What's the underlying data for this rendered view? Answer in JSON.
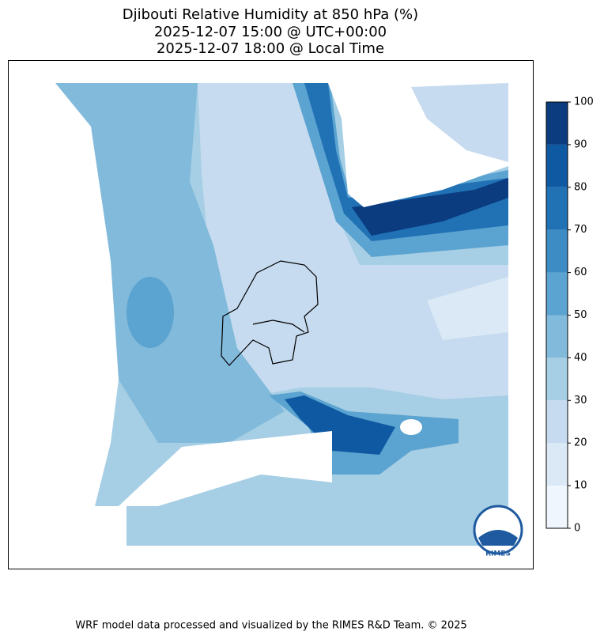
{
  "title": [
    "Djibouti Relative Humidity at 850 hPa (%)",
    "2025-12-07 15:00 @ UTC+00:00",
    "2025-12-07 18:00 @ Local Time"
  ],
  "colorbar": {
    "ticks": [
      0,
      10,
      20,
      30,
      40,
      50,
      60,
      70,
      80,
      90,
      100
    ],
    "colors": [
      "#f0f6fd",
      "#dbe9f6",
      "#c6dbef",
      "#a6cee4",
      "#82badb",
      "#5ba3d0",
      "#3d8dc4",
      "#2171b5",
      "#0f59a3",
      "#0b3c80"
    ]
  },
  "logo": "RIMES",
  "footer": "WRF model data processed and visualized by the RIMES R&D Team. © 2025"
}
